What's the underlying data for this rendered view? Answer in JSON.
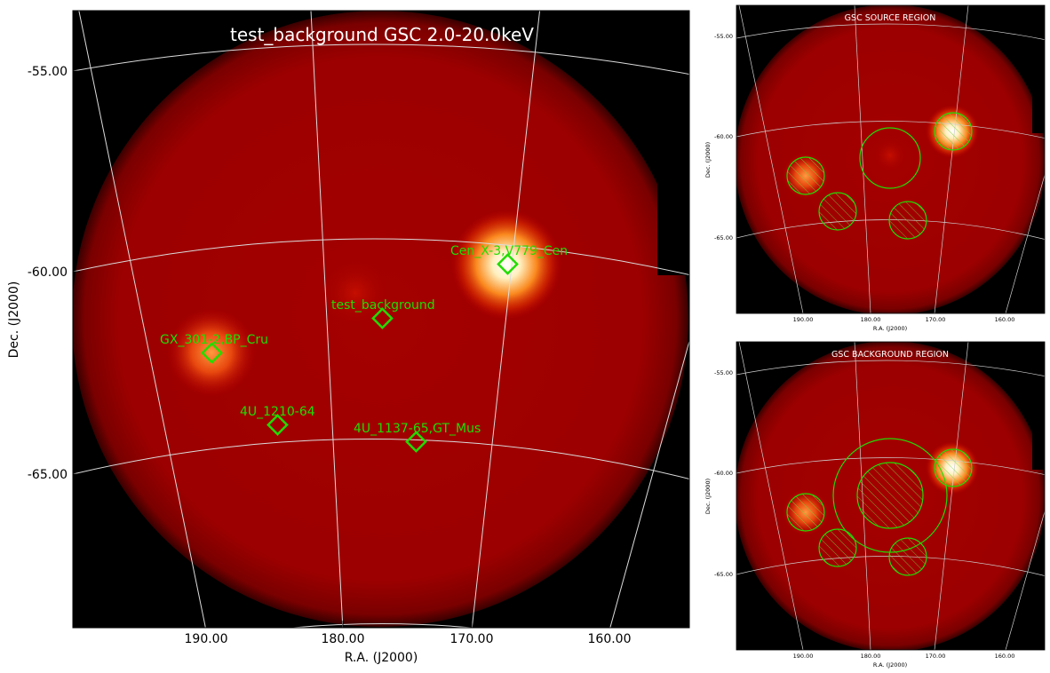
{
  "chart_data": [
    {
      "type": "image",
      "title": "test_background GSC 2.0-20.0keV",
      "xlabel": "R.A. (J2000)",
      "ylabel": "Dec. (J2000)",
      "xticks": [
        "190.00",
        "180.00",
        "170.00",
        "160.00"
      ],
      "yticks": [
        "-55.00",
        "-60.00",
        "-65.00"
      ],
      "sources": [
        {
          "name": "Cen_X-3,V779_Cen",
          "ra": 167.4,
          "dec": -59.9
        },
        {
          "name": "test_background",
          "ra": 176.9,
          "dec": -61.1
        },
        {
          "name": "GX_301-2,BP_Cru",
          "ra": 189.8,
          "dec": -62.2
        },
        {
          "name": "4U_1210-64",
          "ra": 184.6,
          "dec": -63.8
        },
        {
          "name": "4U_1137-65,GT_Mus",
          "ra": 174.3,
          "dec": -64.2
        }
      ],
      "colors": {
        "marker": "#22dd00",
        "title": "#ffffff",
        "background": "#000000",
        "sky": "#a10000",
        "grid": "#d9d9d9"
      }
    },
    {
      "type": "image",
      "title": "GSC SOURCE REGION",
      "xlabel": "R.A. (J2000)",
      "ylabel": "Dec. (J2000)",
      "xticks": [
        "190.00",
        "180.00",
        "170.00",
        "160.00"
      ],
      "yticks": [
        "-55.00",
        "-60.00",
        "-65.00"
      ]
    },
    {
      "type": "image",
      "title": "GSC BACKGROUND REGION",
      "xlabel": "R.A. (J2000)",
      "ylabel": "Dec. (J2000)",
      "xticks": [
        "190.00",
        "180.00",
        "170.00",
        "160.00"
      ],
      "yticks": [
        "-55.00",
        "-60.00",
        "-65.00"
      ]
    }
  ]
}
